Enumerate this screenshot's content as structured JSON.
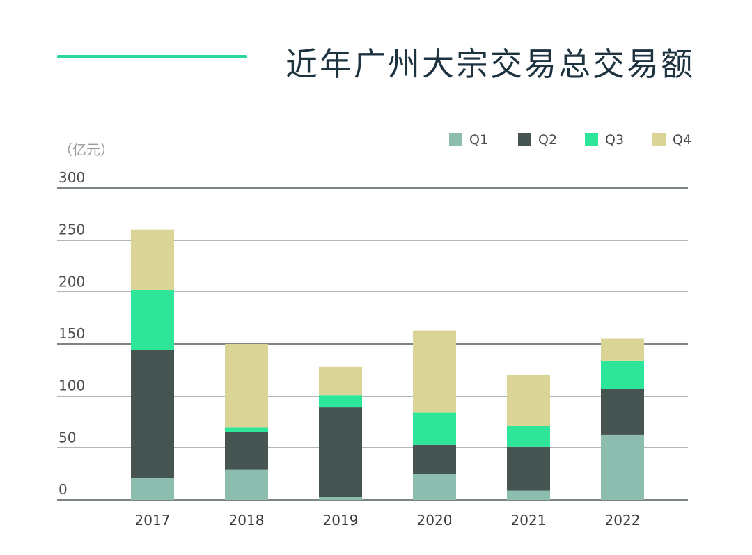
{
  "title": "近年广州大宗交易总交易额",
  "colors": {
    "accent": "#2ed6a0",
    "title": "#1e3340",
    "Q1": "#8cbdae",
    "Q2": "#465452",
    "Q3": "#2ee69a",
    "Q4": "#dad597",
    "grid": "#2f3b3b"
  },
  "chart_data": {
    "type": "bar",
    "stacked": true,
    "title": "近年广州大宗交易总交易额",
    "unit_label": "（亿元）",
    "xlabel": "",
    "ylabel": "（亿元）",
    "ylim": [
      0,
      300
    ],
    "yticks": [
      0,
      50,
      100,
      150,
      200,
      250,
      300
    ],
    "grid": true,
    "legend_position": "top-right",
    "categories": [
      "2017",
      "2018",
      "2019",
      "2020",
      "2021",
      "2022"
    ],
    "series": [
      {
        "name": "Q1",
        "values": [
          21,
          29,
          3,
          25,
          9,
          63
        ]
      },
      {
        "name": "Q2",
        "values": [
          123,
          36,
          86,
          28,
          42,
          44
        ]
      },
      {
        "name": "Q3",
        "values": [
          58,
          5,
          12,
          31,
          20,
          27
        ]
      },
      {
        "name": "Q4",
        "values": [
          58,
          80,
          27,
          79,
          49,
          21
        ]
      }
    ]
  }
}
